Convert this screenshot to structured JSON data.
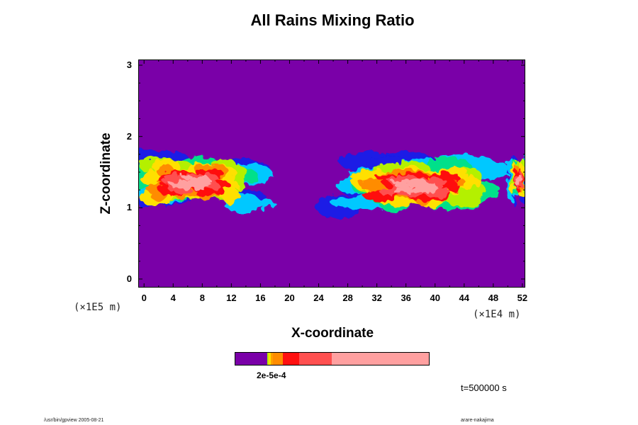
{
  "chart_data": {
    "type": "heatmap",
    "title": "All Rains Mixing Ratio",
    "xlabel": "X-coordinate",
    "ylabel": "Z-coordinate",
    "x_scale_label": "(×1E4 m)",
    "y_scale_label": "(×1E5 m)",
    "x_ticks": [
      "0",
      "4",
      "8",
      "12",
      "16",
      "20",
      "24",
      "28",
      "32",
      "36",
      "40",
      "44",
      "48",
      "52"
    ],
    "y_ticks": [
      "0",
      "1",
      "2",
      "3"
    ],
    "xlim": [
      -0.8,
      52.4
    ],
    "ylim": [
      -0.12,
      3.08
    ],
    "background_color": "#7a00a8",
    "colors": [
      "#7a00a8",
      "#1a1ae6",
      "#00c8ff",
      "#00e08a",
      "#b4f000",
      "#ffe000",
      "#ff8c00",
      "#ff1010",
      "#ff5050",
      "#ffa0a0"
    ],
    "rain_regions": [
      {
        "x_range": [
          -0.8,
          18.5
        ],
        "z_range": [
          0.92,
          1.78
        ],
        "max_at": [
          6.5,
          1.35
        ]
      },
      {
        "x_range": [
          21.5,
          46.5
        ],
        "z_range": [
          0.92,
          1.75
        ],
        "max_at": [
          37,
          1.3
        ]
      },
      {
        "x_range": [
          49.5,
          52.4
        ],
        "z_range": [
          0.95,
          1.6
        ],
        "max_at": [
          51.5,
          1.4
        ]
      }
    ],
    "colorbar": {
      "label_text": "2e-5e-4"
    },
    "time_label": "t=500000 s"
  },
  "footer": {
    "left": "/usr/bin/gpview 2005-08-21",
    "right": "arare-nakajima"
  }
}
